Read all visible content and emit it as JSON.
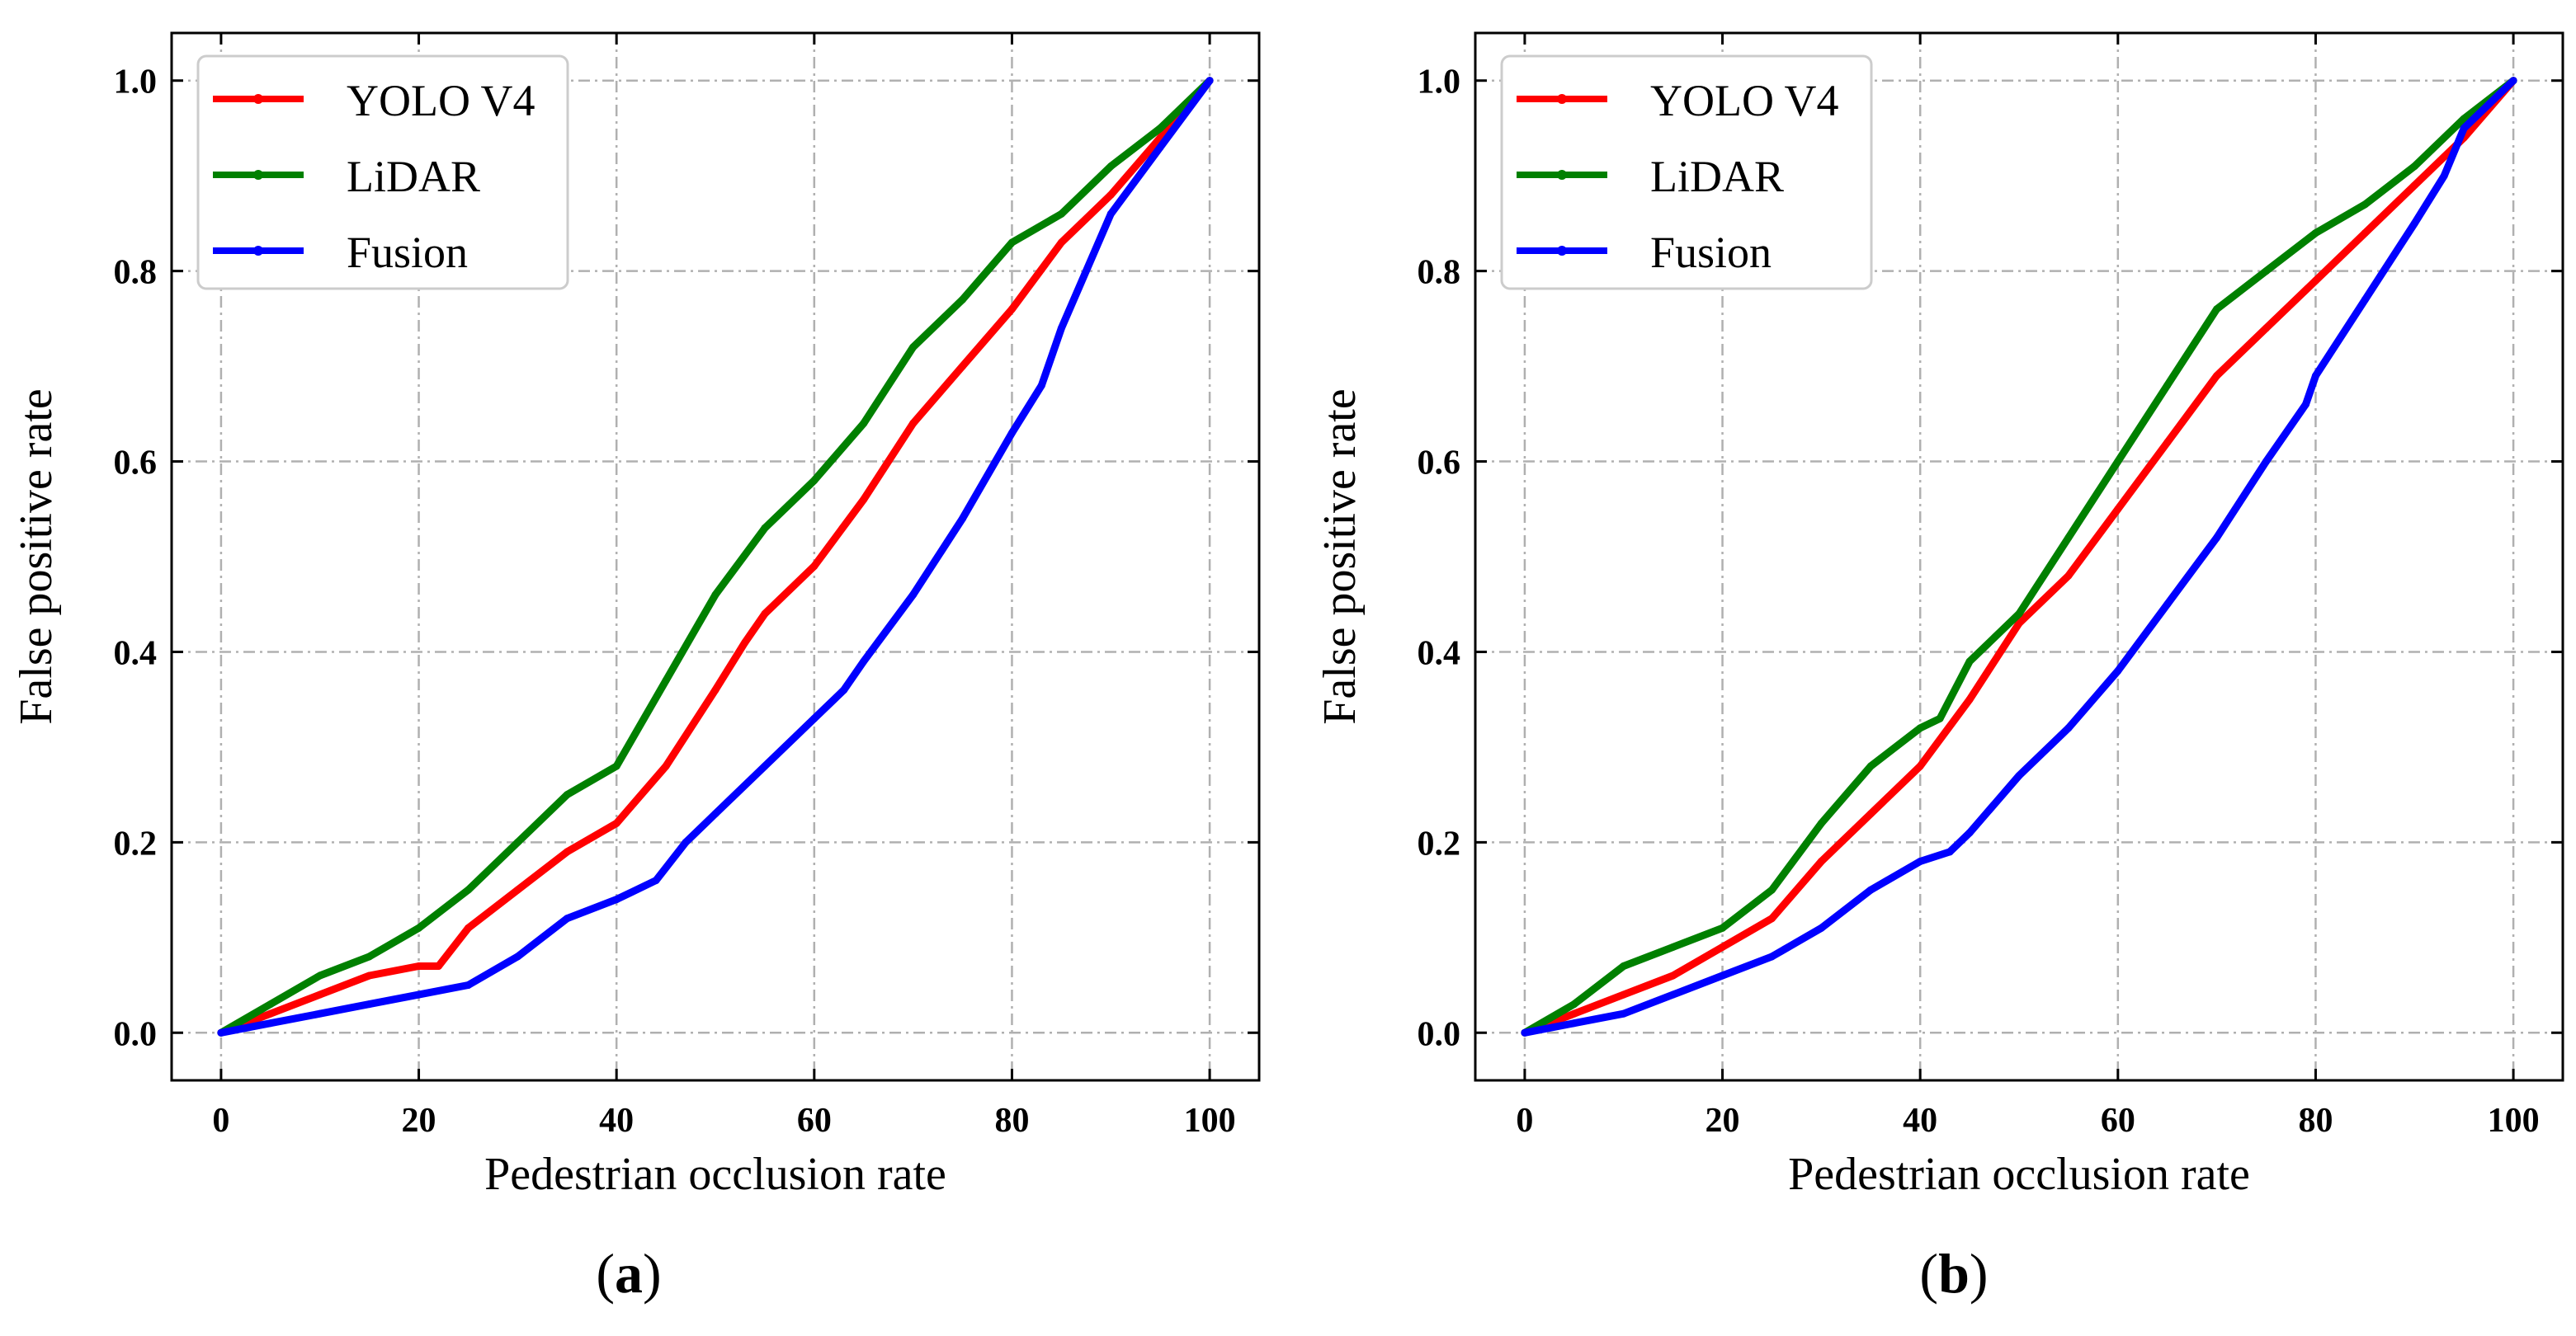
{
  "chart_data": [
    {
      "type": "line",
      "panel": "a",
      "xlabel": "Pedestrian occlusion rate",
      "ylabel": "False positive rate",
      "xlim": [
        -5,
        105
      ],
      "ylim": [
        -0.05,
        1.05
      ],
      "xticks": [
        "0",
        "20",
        "40",
        "60",
        "80",
        "100"
      ],
      "yticks": [
        "0.0",
        "0.2",
        "0.4",
        "0.6",
        "0.8",
        "1.0"
      ],
      "grid": true,
      "legend_position": "top-left",
      "series": [
        {
          "name": "YOLO V4",
          "color": "#ff0000",
          "x": [
            0,
            5,
            10,
            15,
            20,
            22,
            25,
            30,
            35,
            40,
            45,
            50,
            53,
            55,
            60,
            65,
            70,
            75,
            80,
            85,
            90,
            95,
            100
          ],
          "y": [
            0.0,
            0.02,
            0.04,
            0.06,
            0.07,
            0.07,
            0.11,
            0.15,
            0.19,
            0.22,
            0.28,
            0.36,
            0.41,
            0.44,
            0.49,
            0.56,
            0.64,
            0.7,
            0.76,
            0.83,
            0.88,
            0.94,
            1.0
          ]
        },
        {
          "name": "LiDAR",
          "color": "#008000",
          "x": [
            0,
            5,
            10,
            15,
            20,
            25,
            30,
            35,
            40,
            45,
            50,
            55,
            60,
            65,
            70,
            75,
            80,
            85,
            90,
            95,
            100
          ],
          "y": [
            0.0,
            0.03,
            0.06,
            0.08,
            0.11,
            0.15,
            0.2,
            0.25,
            0.28,
            0.37,
            0.46,
            0.53,
            0.58,
            0.64,
            0.72,
            0.77,
            0.83,
            0.86,
            0.91,
            0.95,
            1.0
          ]
        },
        {
          "name": "Fusion",
          "color": "#0000ff",
          "x": [
            0,
            5,
            10,
            15,
            20,
            25,
            30,
            35,
            40,
            44,
            47,
            50,
            55,
            60,
            63,
            65,
            70,
            75,
            80,
            83,
            85,
            90,
            95,
            100
          ],
          "y": [
            0.0,
            0.01,
            0.02,
            0.03,
            0.04,
            0.05,
            0.08,
            0.12,
            0.14,
            0.16,
            0.2,
            0.23,
            0.28,
            0.33,
            0.36,
            0.39,
            0.46,
            0.54,
            0.63,
            0.68,
            0.74,
            0.86,
            0.93,
            1.0
          ]
        }
      ]
    },
    {
      "type": "line",
      "panel": "b",
      "xlabel": "Pedestrian occlusion rate",
      "ylabel": "False positive rate",
      "xlim": [
        -5,
        105
      ],
      "ylim": [
        -0.05,
        1.05
      ],
      "xticks": [
        "0",
        "20",
        "40",
        "60",
        "80",
        "100"
      ],
      "yticks": [
        "0.0",
        "0.2",
        "0.4",
        "0.6",
        "0.8",
        "1.0"
      ],
      "grid": true,
      "legend_position": "top-left",
      "series": [
        {
          "name": "YOLO V4",
          "color": "#ff0000",
          "x": [
            0,
            5,
            10,
            15,
            20,
            25,
            30,
            35,
            40,
            45,
            50,
            55,
            60,
            65,
            70,
            75,
            80,
            85,
            90,
            95,
            100
          ],
          "y": [
            0.0,
            0.02,
            0.04,
            0.06,
            0.09,
            0.12,
            0.18,
            0.23,
            0.28,
            0.35,
            0.43,
            0.48,
            0.55,
            0.62,
            0.69,
            0.74,
            0.79,
            0.84,
            0.89,
            0.94,
            1.0
          ]
        },
        {
          "name": "LiDAR",
          "color": "#008000",
          "x": [
            0,
            5,
            10,
            15,
            20,
            25,
            30,
            35,
            40,
            42,
            45,
            50,
            55,
            60,
            65,
            70,
            75,
            80,
            85,
            90,
            95,
            100
          ],
          "y": [
            0.0,
            0.03,
            0.07,
            0.09,
            0.11,
            0.15,
            0.22,
            0.28,
            0.32,
            0.33,
            0.39,
            0.44,
            0.52,
            0.6,
            0.68,
            0.76,
            0.8,
            0.84,
            0.87,
            0.91,
            0.96,
            1.0
          ]
        },
        {
          "name": "Fusion",
          "color": "#0000ff",
          "x": [
            0,
            5,
            10,
            15,
            20,
            25,
            30,
            35,
            40,
            43,
            45,
            50,
            55,
            60,
            65,
            70,
            75,
            79,
            80,
            85,
            90,
            93,
            95,
            100
          ],
          "y": [
            0.0,
            0.01,
            0.02,
            0.04,
            0.06,
            0.08,
            0.11,
            0.15,
            0.18,
            0.19,
            0.21,
            0.27,
            0.32,
            0.38,
            0.45,
            0.52,
            0.6,
            0.66,
            0.69,
            0.77,
            0.85,
            0.9,
            0.95,
            1.0
          ]
        }
      ]
    }
  ],
  "panel_labels": [
    "a",
    "b"
  ]
}
